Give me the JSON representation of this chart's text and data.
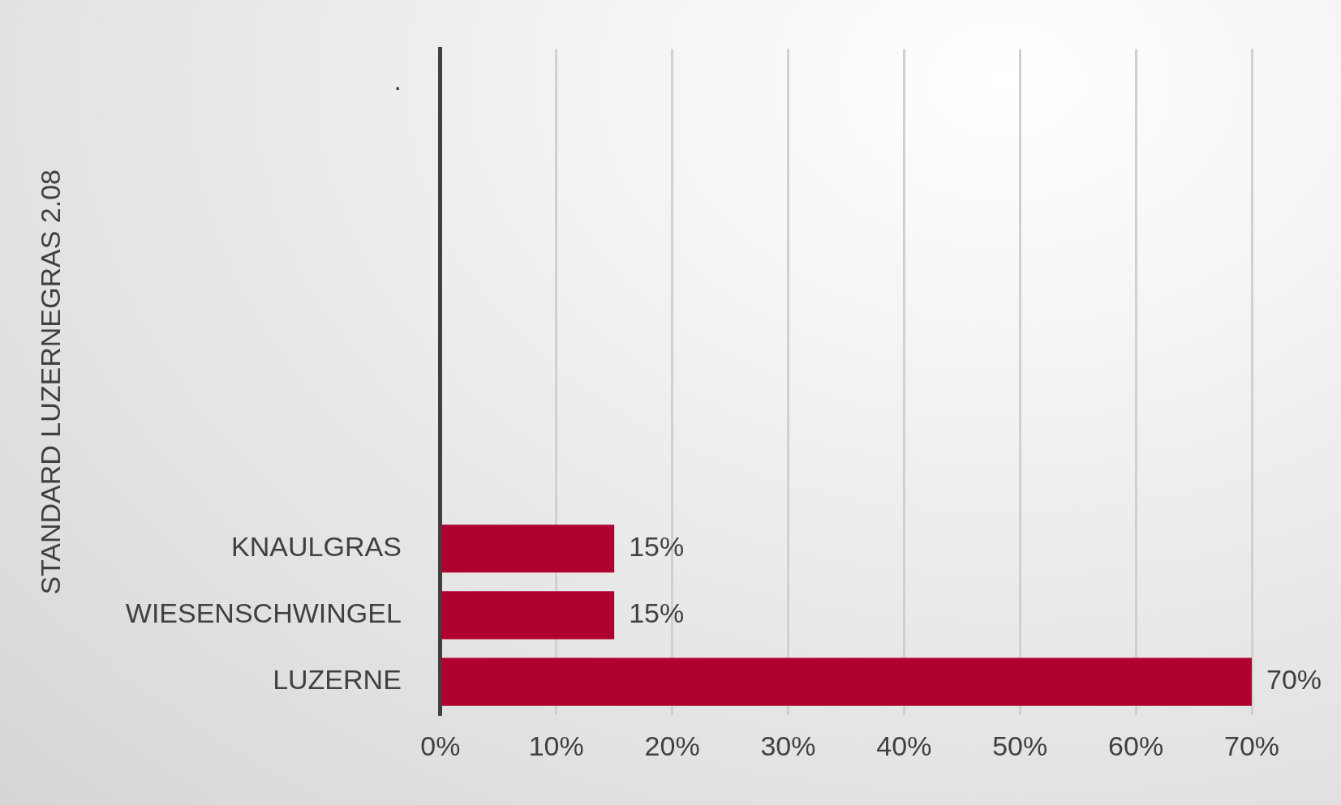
{
  "chart_data": {
    "type": "bar",
    "orientation": "horizontal",
    "ylabel": "STANDARD LUZERNEGRAS 2.08",
    "categories": [
      ".",
      null,
      null,
      null,
      null,
      null,
      null,
      "KNAULGRAS",
      "WIESENSCHWINGEL",
      "LUZERNE"
    ],
    "values": [
      null,
      null,
      null,
      null,
      null,
      null,
      null,
      15,
      15,
      70
    ],
    "value_labels": [
      null,
      null,
      null,
      null,
      null,
      null,
      null,
      "15%",
      "15%",
      "70%"
    ],
    "color": "#b00030",
    "xlim": [
      0,
      70
    ],
    "xticks": [
      {
        "value": 0,
        "label": "0%"
      },
      {
        "value": 10,
        "label": "10%"
      },
      {
        "value": 20,
        "label": "20%"
      },
      {
        "value": 30,
        "label": "30%"
      },
      {
        "value": 40,
        "label": "40%"
      },
      {
        "value": 50,
        "label": "50%"
      },
      {
        "value": 60,
        "label": "60%"
      },
      {
        "value": 70,
        "label": "70%"
      }
    ],
    "grid": "x",
    "legend": false
  }
}
